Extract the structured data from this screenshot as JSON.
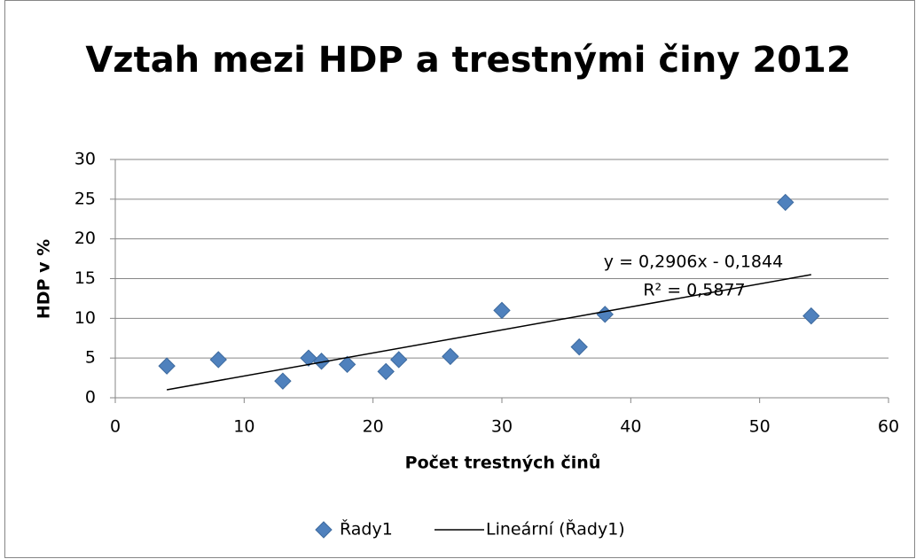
{
  "chart_data": {
    "type": "scatter",
    "title": "Vztah mezi HDP a trestnými činy 2012",
    "xlabel": "Počet trestných činů",
    "ylabel": "HDP v %",
    "series": [
      {
        "name": "Řady1",
        "color": "#4f81bd",
        "x": [
          4,
          8,
          13,
          15,
          16,
          18,
          21,
          22,
          26,
          30,
          36,
          38,
          52,
          54
        ],
        "values": [
          4.0,
          4.8,
          2.1,
          5.0,
          4.6,
          4.2,
          3.3,
          4.8,
          5.2,
          11.0,
          6.4,
          10.5,
          24.6,
          10.3
        ]
      }
    ],
    "trendline": {
      "name": "Lineární (Řady1)",
      "color": "#000000",
      "x": [
        4,
        54
      ],
      "values": [
        1.0,
        15.5
      ],
      "equation": "y = 0,2906x - 0,1844",
      "r2": "R² = 0,5877"
    },
    "xlim": [
      0,
      60
    ],
    "xticks": [
      0,
      10,
      20,
      30,
      40,
      50,
      60
    ],
    "ylim": [
      0,
      30
    ],
    "yticks": [
      0,
      5,
      10,
      15,
      20,
      25,
      30
    ],
    "grid": true,
    "legend": "bottom"
  }
}
